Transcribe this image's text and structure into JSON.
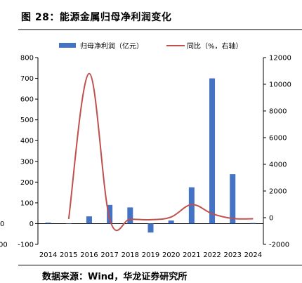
{
  "figure": {
    "title": "图 28：能源金属归母净利润变化",
    "source": "数据来源：Wind，华龙证券研究所"
  },
  "chart_data": {
    "type": "bar+line",
    "categories": [
      "2014",
      "2015",
      "2016",
      "2017",
      "2018",
      "2019",
      "2020",
      "2021",
      "2022",
      "2023",
      "2024"
    ],
    "series": [
      {
        "name": "归母净利润（亿元）",
        "type": "bar",
        "axis": "left",
        "color": "#4472C4",
        "values": [
          5,
          0,
          35,
          90,
          78,
          -43,
          15,
          175,
          700,
          238,
          3
        ]
      },
      {
        "name": "同比（%，右轴）",
        "type": "line",
        "axis": "right",
        "color": "#C0504D",
        "values": [
          null,
          -100,
          10800,
          -80,
          -110,
          -150,
          50,
          980,
          300,
          -60,
          -80
        ]
      }
    ],
    "y_left": {
      "lim": [
        -100,
        800
      ],
      "ticks": [
        "-100",
        "0",
        "100",
        "200",
        "300",
        "400",
        "500",
        "600",
        "700",
        "800"
      ]
    },
    "y_right": {
      "lim": [
        -2000,
        12000
      ],
      "ticks": [
        "-2000",
        "0",
        "2000",
        "4000",
        "6000",
        "8000",
        "10000",
        "12000"
      ]
    },
    "left_edge_stubs": [
      "0",
      "00"
    ],
    "grid": false,
    "legend_position": "top"
  }
}
